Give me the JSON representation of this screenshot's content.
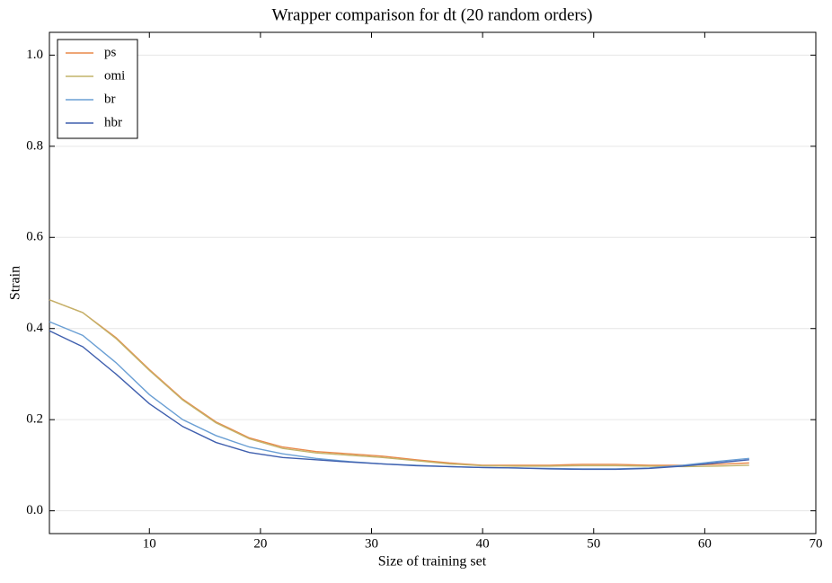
{
  "chart_data": {
    "type": "line",
    "title": "Wrapper comparison for dt (20 random orders)",
    "x_label": "Size of training set",
    "y_label": "Strain",
    "x": [
      1,
      4,
      7,
      10,
      13,
      16,
      19,
      22,
      25,
      28,
      31,
      34,
      37,
      40,
      43,
      46,
      49,
      52,
      55,
      58,
      61,
      64
    ],
    "series": [
      {
        "name": "ps",
        "color": "#e8894a",
        "values": [
          0.463,
          0.435,
          0.38,
          0.31,
          0.245,
          0.195,
          0.16,
          0.14,
          0.13,
          0.125,
          0.12,
          0.112,
          0.105,
          0.1,
          0.1,
          0.1,
          0.102,
          0.102,
          0.1,
          0.1,
          0.102,
          0.105
        ]
      },
      {
        "name": "omi",
        "color": "#c2b36a",
        "values": [
          0.463,
          0.435,
          0.378,
          0.308,
          0.243,
          0.193,
          0.158,
          0.137,
          0.127,
          0.122,
          0.117,
          0.11,
          0.103,
          0.099,
          0.098,
          0.098,
          0.099,
          0.099,
          0.098,
          0.097,
          0.098,
          0.1
        ]
      },
      {
        "name": "br",
        "color": "#6a9fd4",
        "values": [
          0.415,
          0.385,
          0.325,
          0.255,
          0.2,
          0.165,
          0.14,
          0.125,
          0.115,
          0.108,
          0.103,
          0.1,
          0.097,
          0.095,
          0.094,
          0.093,
          0.092,
          0.092,
          0.094,
          0.1,
          0.108,
          0.115
        ]
      },
      {
        "name": "hbr",
        "color": "#3f5fae",
        "values": [
          0.395,
          0.36,
          0.3,
          0.235,
          0.185,
          0.15,
          0.128,
          0.117,
          0.112,
          0.107,
          0.103,
          0.099,
          0.097,
          0.095,
          0.094,
          0.092,
          0.091,
          0.091,
          0.093,
          0.098,
          0.105,
          0.112
        ]
      }
    ],
    "xlim": [
      1,
      70
    ],
    "ylim": [
      -0.05,
      1.05
    ],
    "xticks": [
      10,
      20,
      30,
      40,
      50,
      60,
      70
    ],
    "yticks": [
      {
        "value": 0,
        "label": "0.0"
      },
      {
        "value": 0.2,
        "label": "0.2"
      },
      {
        "value": 0.4,
        "label": "0.4"
      },
      {
        "value": 0.6,
        "label": "0.6"
      },
      {
        "value": 0.8,
        "label": "0.8"
      },
      {
        "value": 1,
        "label": "1.0"
      }
    ],
    "grid": true,
    "legend": "upper-left"
  }
}
